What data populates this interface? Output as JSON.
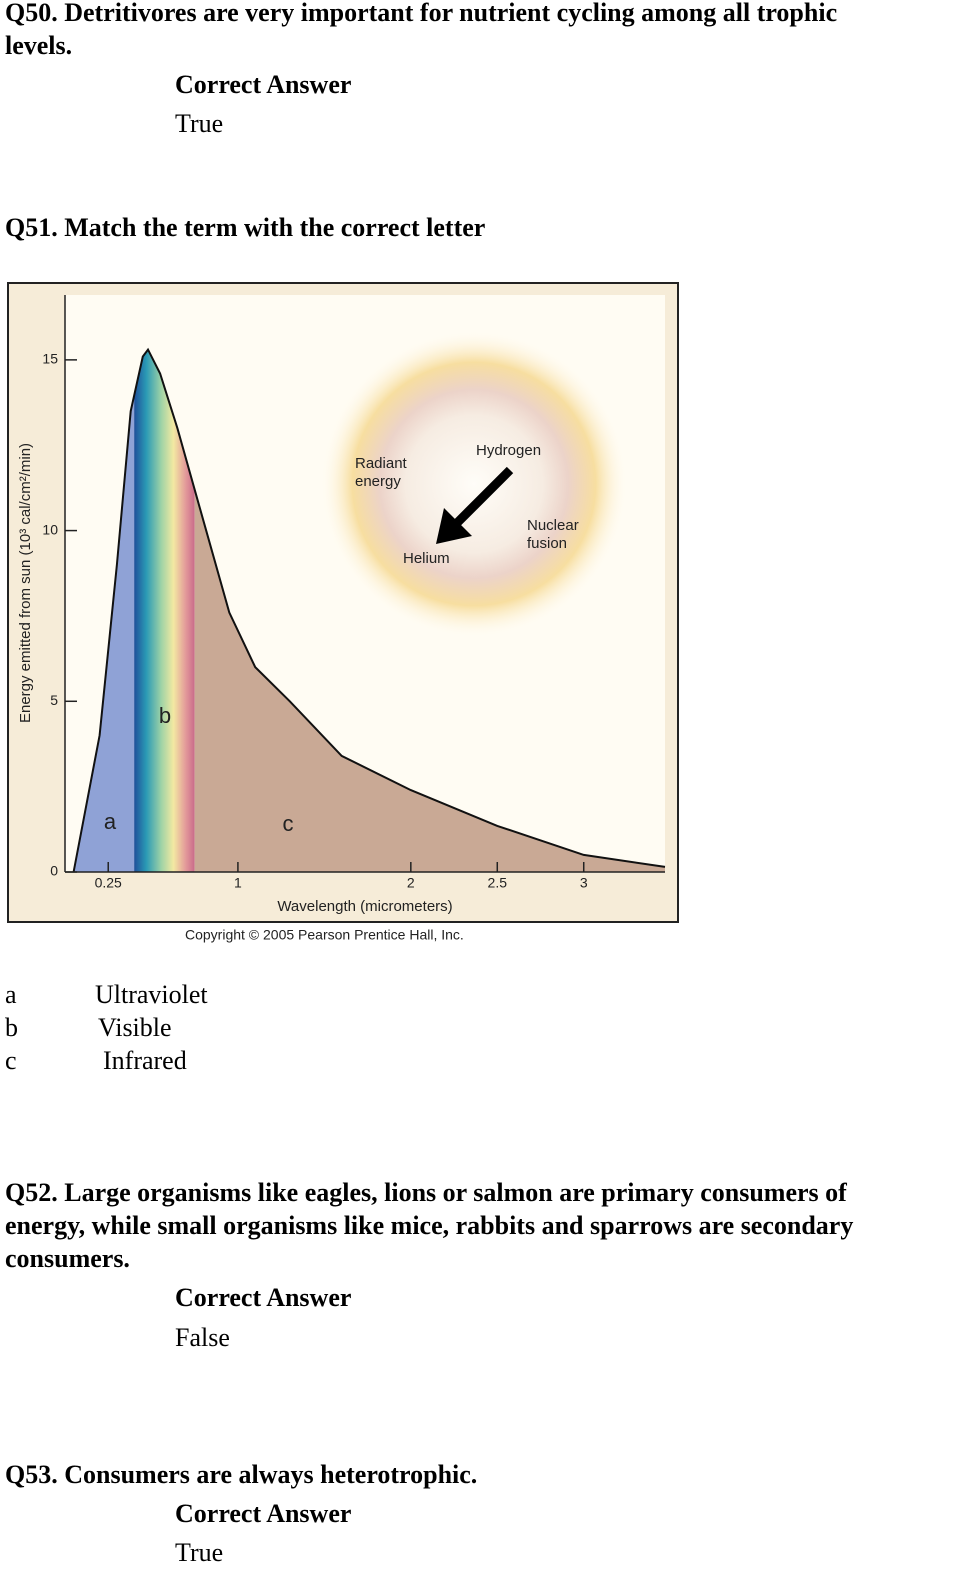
{
  "questions": [
    {
      "lines": [
        "Q50. Detritivores are very important for nutrient cycling among all trophic",
        "levels."
      ],
      "answer_heading": "Correct Answer",
      "answer": "True"
    },
    {
      "lines": [
        "Q51. Match the term with the correct letter"
      ],
      "matches": [
        [
          "a",
          "Ultraviolet"
        ],
        [
          "b",
          "Visible"
        ],
        [
          "c",
          "Infrared"
        ]
      ]
    },
    {
      "lines": [
        "Q52. Large organisms like eagles, lions or salmon are primary consumers of",
        "energy, while small organisms like mice, rabbits and sparrows are secondary",
        "consumers."
      ],
      "answer_heading": "Correct Answer",
      "answer": "False"
    },
    {
      "lines": [
        "Q53. Consumers are always heterotrophic."
      ],
      "answer_heading": "Correct Answer",
      "answer": "True"
    }
  ],
  "figure": {
    "chart_data": {
      "type": "area",
      "xlabel": "Wavelength (micrometers)",
      "ylabel": "Energy emitted from sun (10³ cal/cm²/min)",
      "x": [
        0.05,
        0.2,
        0.3,
        0.38,
        0.45,
        0.48,
        0.55,
        0.65,
        0.8,
        0.95,
        1.1,
        1.3,
        1.6,
        2,
        2.5,
        3,
        3.47
      ],
      "values": [
        0,
        4,
        9,
        13.5,
        15.1,
        15.3,
        14.6,
        13,
        10.3,
        7.6,
        6,
        5,
        3.4,
        2.4,
        1.35,
        0.5,
        0.15
      ],
      "xlim": [
        0,
        3.47
      ],
      "ylim": [
        0,
        16.9
      ],
      "xticks": [
        0.25,
        1,
        2,
        2.5,
        3
      ],
      "yticks": [
        0,
        5,
        10,
        15
      ],
      "bands": [
        {
          "label": "a",
          "x0": 0.05,
          "x1": 0.4,
          "color": "#8fa2d6"
        },
        {
          "label": "b",
          "x0": 0.4,
          "x1": 0.75,
          "color": "#7fc7b0"
        },
        {
          "label": "c",
          "x0": 0.75,
          "x1": 3.47,
          "color": "#c9a995"
        }
      ]
    },
    "inset_labels": [
      [
        "Radiant",
        "energy"
      ],
      [
        "Hydrogen"
      ],
      [
        "Helium"
      ],
      [
        "Nuclear",
        "fusion"
      ]
    ],
    "copyright": "Copyright © 2005 Pearson Prentice Hall, Inc."
  }
}
